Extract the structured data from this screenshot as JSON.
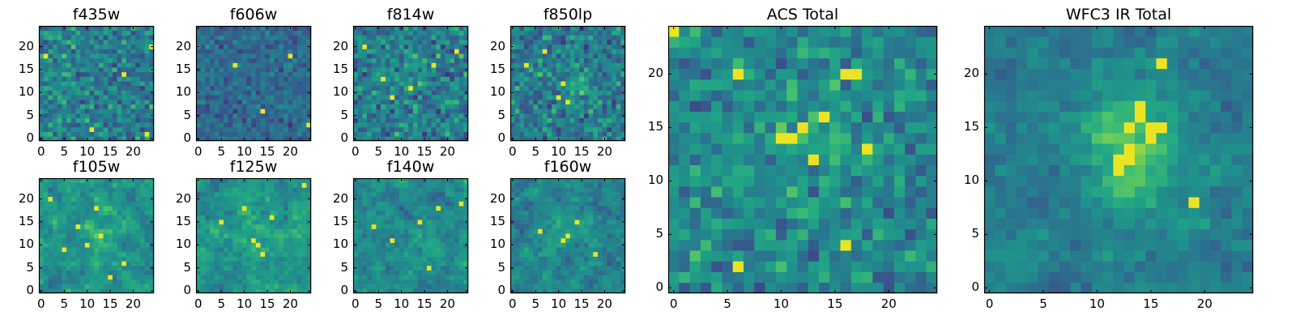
{
  "figure": {
    "panels": [
      {
        "id": "f435w",
        "title": "f435w",
        "xticks": [
          "0",
          "5",
          "10",
          "15",
          "20"
        ],
        "yticks": [
          "0",
          "5",
          "10",
          "15",
          "20"
        ]
      },
      {
        "id": "f606w",
        "title": "f606w",
        "xticks": [
          "0",
          "5",
          "10",
          "15",
          "20"
        ],
        "yticks": [
          "0",
          "5",
          "10",
          "15",
          "20"
        ]
      },
      {
        "id": "f814w",
        "title": "f814w",
        "xticks": [
          "0",
          "5",
          "10",
          "15",
          "20"
        ],
        "yticks": [
          "0",
          "5",
          "10",
          "15",
          "20"
        ]
      },
      {
        "id": "f850lp",
        "title": "f850lp",
        "xticks": [
          "0",
          "5",
          "10",
          "15",
          "20"
        ],
        "yticks": [
          "0",
          "5",
          "10",
          "15",
          "20"
        ]
      },
      {
        "id": "f105w",
        "title": "f105w",
        "xticks": [
          "0",
          "5",
          "10",
          "15",
          "20"
        ],
        "yticks": [
          "0",
          "5",
          "10",
          "15",
          "20"
        ]
      },
      {
        "id": "f125w",
        "title": "f125w",
        "xticks": [
          "0",
          "5",
          "10",
          "15",
          "20"
        ],
        "yticks": [
          "0",
          "5",
          "10",
          "15",
          "20"
        ]
      },
      {
        "id": "f140w",
        "title": "f140w",
        "xticks": [
          "0",
          "5",
          "10",
          "15",
          "20"
        ],
        "yticks": [
          "0",
          "5",
          "10",
          "15",
          "20"
        ]
      },
      {
        "id": "f160w",
        "title": "f160w",
        "xticks": [
          "0",
          "5",
          "10",
          "15",
          "20"
        ],
        "yticks": [
          "0",
          "5",
          "10",
          "15",
          "20"
        ]
      },
      {
        "id": "acs-total",
        "title": "ACS Total",
        "xticks": [
          "0",
          "5",
          "10",
          "15",
          "20"
        ],
        "yticks": [
          "0",
          "5",
          "10",
          "15",
          "20"
        ]
      },
      {
        "id": "wfc3-ir-total",
        "title": "WFC3 IR Total",
        "xticks": [
          "0",
          "5",
          "10",
          "15",
          "20"
        ],
        "yticks": [
          "0",
          "5",
          "10",
          "15",
          "20"
        ]
      }
    ]
  },
  "chart_data": [
    {
      "type": "heatmap",
      "title": "f435w",
      "colormap": "viridis",
      "grid_shape": [
        25,
        25
      ],
      "xlim": [
        -0.5,
        24.5
      ],
      "ylim": [
        -0.5,
        24.5
      ],
      "origin": "lower",
      "grid": false,
      "bright_pixels": [
        [
          24,
          20
        ],
        [
          18,
          14
        ],
        [
          23,
          1
        ],
        [
          1,
          18
        ],
        [
          11,
          2
        ]
      ]
    },
    {
      "type": "heatmap",
      "title": "f606w",
      "colormap": "viridis",
      "grid_shape": [
        25,
        25
      ],
      "xlim": [
        -0.5,
        24.5
      ],
      "ylim": [
        -0.5,
        24.5
      ],
      "origin": "lower",
      "grid": false,
      "bright_pixels": [
        [
          24,
          3
        ],
        [
          14,
          6
        ],
        [
          20,
          18
        ],
        [
          8,
          16
        ]
      ]
    },
    {
      "type": "heatmap",
      "title": "f814w",
      "colormap": "viridis",
      "grid_shape": [
        25,
        25
      ],
      "xlim": [
        -0.5,
        24.5
      ],
      "ylim": [
        -0.5,
        24.5
      ],
      "origin": "lower",
      "grid": false,
      "bright_pixels": [
        [
          12,
          11
        ],
        [
          2,
          20
        ],
        [
          6,
          13
        ],
        [
          17,
          16
        ],
        [
          8,
          9
        ],
        [
          22,
          19
        ]
      ]
    },
    {
      "type": "heatmap",
      "title": "f850lp",
      "colormap": "viridis",
      "grid_shape": [
        25,
        25
      ],
      "xlim": [
        -0.5,
        24.5
      ],
      "ylim": [
        -0.5,
        24.5
      ],
      "origin": "lower",
      "grid": false,
      "bright_pixels": [
        [
          11,
          12
        ],
        [
          12,
          8
        ],
        [
          10,
          9
        ],
        [
          7,
          19
        ],
        [
          3,
          16
        ]
      ]
    },
    {
      "type": "heatmap",
      "title": "f105w",
      "colormap": "viridis",
      "grid_shape": [
        25,
        25
      ],
      "xlim": [
        -0.5,
        24.5
      ],
      "ylim": [
        -0.5,
        24.5
      ],
      "origin": "lower",
      "grid": false,
      "bright_pixels": [
        [
          12,
          18
        ],
        [
          13,
          12
        ],
        [
          10,
          10
        ],
        [
          5,
          9
        ],
        [
          18,
          6
        ],
        [
          2,
          20
        ],
        [
          15,
          3
        ],
        [
          8,
          14
        ]
      ]
    },
    {
      "type": "heatmap",
      "title": "f125w",
      "colormap": "viridis",
      "grid_shape": [
        25,
        25
      ],
      "xlim": [
        -0.5,
        24.5
      ],
      "ylim": [
        -0.5,
        24.5
      ],
      "origin": "lower",
      "grid": false,
      "bright_pixels": [
        [
          13,
          10
        ],
        [
          12,
          11
        ],
        [
          10,
          18
        ],
        [
          16,
          16
        ],
        [
          5,
          15
        ],
        [
          23,
          23
        ],
        [
          14,
          8
        ]
      ]
    },
    {
      "type": "heatmap",
      "title": "f140w",
      "colormap": "viridis",
      "grid_shape": [
        25,
        25
      ],
      "xlim": [
        -0.5,
        24.5
      ],
      "ylim": [
        -0.5,
        24.5
      ],
      "origin": "lower",
      "grid": false,
      "bright_pixels": [
        [
          14,
          15
        ],
        [
          23,
          19
        ],
        [
          4,
          14
        ],
        [
          18,
          18
        ],
        [
          16,
          5
        ],
        [
          8,
          11
        ]
      ]
    },
    {
      "type": "heatmap",
      "title": "f160w",
      "colormap": "viridis",
      "grid_shape": [
        25,
        25
      ],
      "xlim": [
        -0.5,
        24.5
      ],
      "ylim": [
        -0.5,
        24.5
      ],
      "origin": "lower",
      "grid": false,
      "bright_pixels": [
        [
          12,
          12
        ],
        [
          11,
          11
        ],
        [
          14,
          15
        ],
        [
          6,
          13
        ],
        [
          18,
          8
        ]
      ]
    },
    {
      "type": "heatmap",
      "title": "ACS Total",
      "colormap": "viridis",
      "grid_shape": [
        25,
        25
      ],
      "xlim": [
        -0.5,
        24.5
      ],
      "ylim": [
        -0.5,
        24.5
      ],
      "origin": "lower",
      "grid": false,
      "bright_pixels": [
        [
          14,
          16
        ],
        [
          12,
          15
        ],
        [
          11,
          14
        ],
        [
          10,
          14
        ],
        [
          6,
          20
        ],
        [
          16,
          20
        ],
        [
          17,
          20
        ],
        [
          0,
          24
        ],
        [
          13,
          12
        ],
        [
          16,
          4
        ],
        [
          6,
          2
        ],
        [
          18,
          13
        ]
      ]
    },
    {
      "type": "heatmap",
      "title": "WFC3 IR Total",
      "colormap": "viridis",
      "grid_shape": [
        25,
        25
      ],
      "xlim": [
        -0.5,
        24.5
      ],
      "ylim": [
        -0.5,
        24.5
      ],
      "origin": "lower",
      "grid": false,
      "bright_pixels": [
        [
          12,
          12
        ],
        [
          13,
          13
        ],
        [
          13,
          15
        ],
        [
          14,
          16
        ],
        [
          15,
          15
        ],
        [
          16,
          15
        ],
        [
          14,
          17
        ],
        [
          13,
          12
        ],
        [
          12,
          11
        ],
        [
          15,
          14
        ],
        [
          16,
          21
        ],
        [
          19,
          8
        ]
      ]
    }
  ]
}
